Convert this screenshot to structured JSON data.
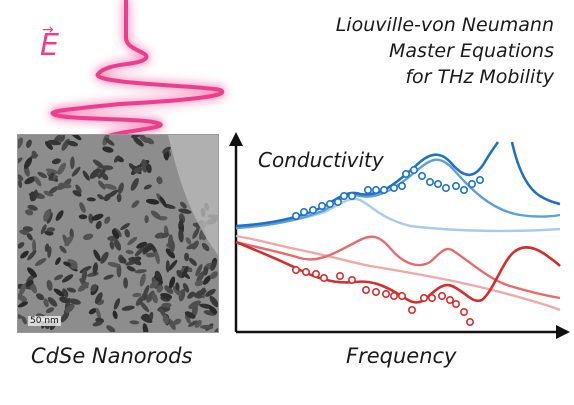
{
  "title": {
    "line1": "Liouville-von Neumann",
    "line2": "Master Equations",
    "line3": "for THz Mobility"
  },
  "field": {
    "symbol": "E",
    "arrow": "→"
  },
  "micrograph": {
    "caption": "CdSe Nanorods",
    "scalebar": "50 nm"
  },
  "plot": {
    "series_label": "Conductivity",
    "xlabel": "Frequency"
  },
  "colors": {
    "pulse": "#ee3d8c",
    "blue_dark": "#1f73c6",
    "blue_light": "#a9ccea",
    "red_dark": "#d42e2e",
    "red_light": "#f0a9a9",
    "axis": "#111111"
  },
  "icons": [
    "up-arrow-icon",
    "right-arrow-icon",
    "field-arrow-icon"
  ]
}
